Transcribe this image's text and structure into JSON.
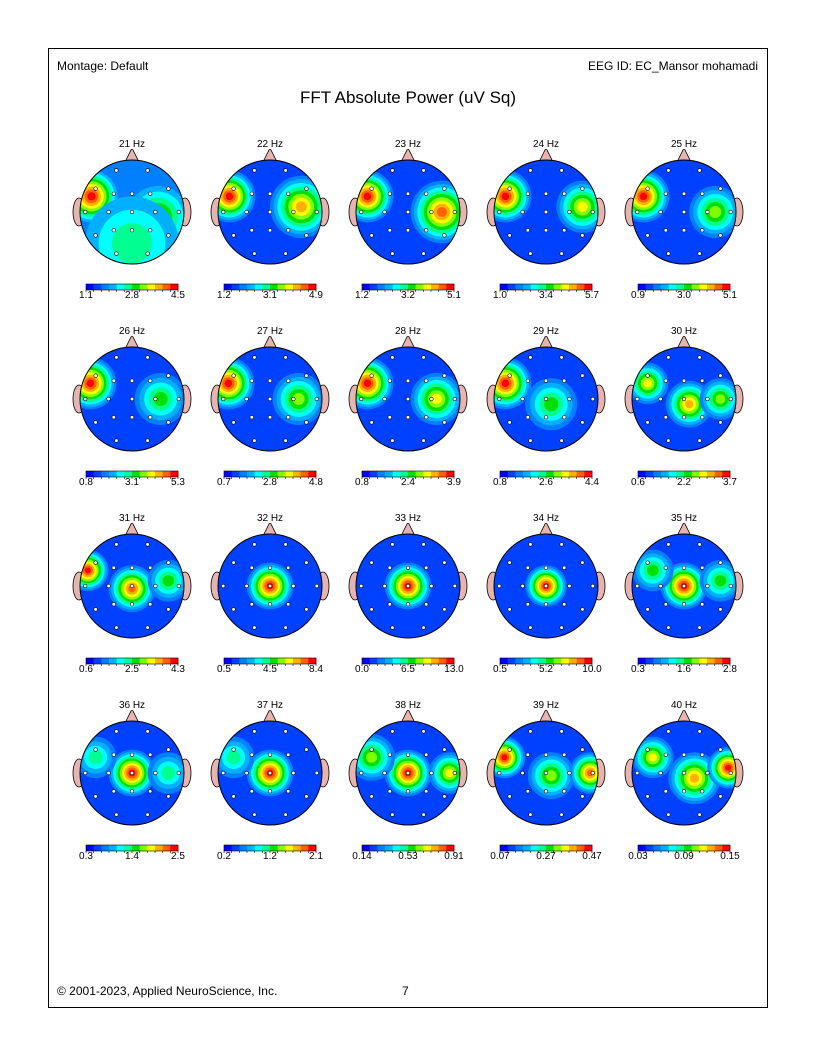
{
  "header": {
    "montage": "Montage:  Default",
    "eeg_id": "EEG ID:  EC_Mansor mohamadi",
    "title": "FFT Absolute Power  (uV Sq)"
  },
  "footer": {
    "copyright": "© 2001-2023, Applied NeuroScience, Inc.",
    "page": "7"
  },
  "colors": [
    "#0000ff",
    "#0040ff",
    "#0080ff",
    "#00b0ff",
    "#00ffff",
    "#00ff90",
    "#00e000",
    "#80ff00",
    "#ffff00",
    "#ffb000",
    "#ff6000",
    "#ff0000"
  ],
  "chart_data": {
    "type": "heatmap",
    "description_units": "uV Sq",
    "maps": [
      {
        "label": "21 Hz",
        "scale": [
          "1.1",
          "2.8",
          "4.5"
        ]
      },
      {
        "label": "22 Hz",
        "scale": [
          "1.2",
          "3.1",
          "4.9"
        ]
      },
      {
        "label": "23 Hz",
        "scale": [
          "1.2",
          "3.2",
          "5.1"
        ]
      },
      {
        "label": "24 Hz",
        "scale": [
          "1.0",
          "3.4",
          "5.7"
        ]
      },
      {
        "label": "25 Hz",
        "scale": [
          "0.9",
          "3.0",
          "5.1"
        ]
      },
      {
        "label": "26 Hz",
        "scale": [
          "0.8",
          "3.1",
          "5.3"
        ]
      },
      {
        "label": "27 Hz",
        "scale": [
          "0.7",
          "2.8",
          "4.8"
        ]
      },
      {
        "label": "28 Hz",
        "scale": [
          "0.8",
          "2.4",
          "3.9"
        ]
      },
      {
        "label": "29 Hz",
        "scale": [
          "0.8",
          "2.6",
          "4.4"
        ]
      },
      {
        "label": "30 Hz",
        "scale": [
          "0.6",
          "2.2",
          "3.7"
        ]
      },
      {
        "label": "31 Hz",
        "scale": [
          "0.6",
          "2.5",
          "4.3"
        ]
      },
      {
        "label": "32 Hz",
        "scale": [
          "0.5",
          "4.5",
          "8.4"
        ]
      },
      {
        "label": "33 Hz",
        "scale": [
          "0.0",
          "6.5",
          "13.0"
        ]
      },
      {
        "label": "34 Hz",
        "scale": [
          "0.5",
          "5.2",
          "10.0"
        ]
      },
      {
        "label": "35 Hz",
        "scale": [
          "0.3",
          "1.6",
          "2.8"
        ]
      },
      {
        "label": "36 Hz",
        "scale": [
          "0.3",
          "1.4",
          "2.5"
        ]
      },
      {
        "label": "37 Hz",
        "scale": [
          "0.2",
          "1.2",
          "2.1"
        ]
      },
      {
        "label": "38 Hz",
        "scale": [
          "0.14",
          "0.53",
          "0.91"
        ]
      },
      {
        "label": "39 Hz",
        "scale": [
          "0.07",
          "0.27",
          "0.47"
        ]
      },
      {
        "label": "40 Hz",
        "scale": [
          "0.03",
          "0.09",
          "0.15"
        ]
      }
    ]
  }
}
